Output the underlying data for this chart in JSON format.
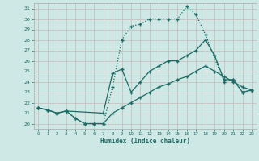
{
  "xlabel": "Humidex (Indice chaleur)",
  "bg_color": "#cde8e5",
  "grid_color": "#b8d8d5",
  "line_color": "#1e6b65",
  "xlim": [
    -0.5,
    23.5
  ],
  "ylim": [
    19.5,
    31.5
  ],
  "yticks": [
    20,
    21,
    22,
    23,
    24,
    25,
    26,
    27,
    28,
    29,
    30,
    31
  ],
  "xticks": [
    0,
    1,
    2,
    3,
    4,
    5,
    6,
    7,
    8,
    9,
    10,
    11,
    12,
    13,
    14,
    15,
    16,
    17,
    18,
    19,
    20,
    21,
    22,
    23
  ],
  "line1_x": [
    0,
    1,
    2,
    3,
    4,
    5,
    6,
    7,
    8,
    9,
    10,
    11,
    12,
    13,
    14,
    15,
    16,
    17,
    18,
    20,
    21,
    22,
    23
  ],
  "line1_y": [
    21.5,
    21.3,
    21.0,
    21.2,
    20.5,
    20.0,
    20.0,
    20.0,
    23.5,
    28.0,
    29.3,
    29.5,
    30.0,
    30.0,
    30.0,
    30.0,
    31.2,
    30.4,
    28.5,
    24.0,
    24.2,
    23.0,
    23.2
  ],
  "line2_x": [
    0,
    1,
    2,
    3,
    7,
    8,
    9,
    10,
    11,
    12,
    13,
    14,
    15,
    16,
    17,
    18,
    19,
    20,
    21,
    22,
    23
  ],
  "line2_y": [
    21.5,
    21.3,
    21.0,
    21.2,
    21.0,
    24.8,
    25.2,
    23.0,
    24.0,
    25.0,
    25.5,
    26.0,
    26.0,
    26.5,
    27.0,
    28.0,
    26.5,
    24.2,
    24.2,
    23.0,
    23.2
  ],
  "line3_x": [
    0,
    1,
    2,
    3,
    4,
    5,
    6,
    7,
    8,
    9,
    10,
    11,
    12,
    13,
    14,
    15,
    16,
    17,
    18,
    19,
    20,
    21,
    22,
    23
  ],
  "line3_y": [
    21.5,
    21.3,
    21.0,
    21.2,
    20.5,
    20.0,
    20.0,
    20.0,
    21.0,
    21.5,
    22.0,
    22.5,
    23.0,
    23.5,
    23.8,
    24.2,
    24.5,
    25.0,
    25.5,
    25.0,
    24.5,
    24.0,
    23.5,
    23.2
  ]
}
